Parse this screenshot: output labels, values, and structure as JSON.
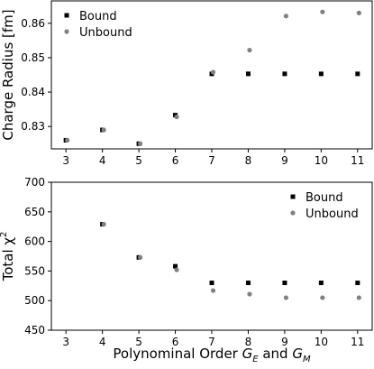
{
  "chart_data": [
    {
      "type": "scatter",
      "title": "",
      "xlabel": "",
      "ylabel": "Charge Radius [fm]",
      "x": [
        3,
        4,
        5,
        6,
        7,
        8,
        9,
        10,
        11
      ],
      "xlim": [
        2.6,
        11.4
      ],
      "ylim": [
        0.8235,
        0.8665
      ],
      "xticks": [
        "3",
        "4",
        "5",
        "6",
        "7",
        "8",
        "9",
        "10",
        "11"
      ],
      "yticks": [
        "0.83",
        "0.84",
        "0.85",
        "0.86"
      ],
      "ytick_values": [
        0.83,
        0.84,
        0.85,
        0.86
      ],
      "grid": false,
      "legend_position": "top-left",
      "series": [
        {
          "name": "Bound",
          "color": "#000000",
          "marker": "square",
          "values": [
            0.826,
            0.829,
            0.825,
            0.8333,
            0.8453,
            0.8453,
            0.8453,
            0.8453,
            0.8453
          ]
        },
        {
          "name": "Unbound",
          "color": "#808080",
          "marker": "circle",
          "values": [
            0.826,
            0.829,
            0.825,
            0.8328,
            0.8458,
            0.8522,
            0.8621,
            0.8633,
            0.863
          ]
        }
      ]
    },
    {
      "type": "scatter",
      "title": "",
      "xlabel": "Polynominal Order G_E and G_M",
      "xlabel_parts": {
        "prefix": "Polynominal Order ",
        "var1": "G",
        "sub1": "E",
        "mid": " and ",
        "var2": "G",
        "sub2": "M"
      },
      "ylabel": "Total χ",
      "ylabel_sup": "2",
      "x": [
        3,
        4,
        5,
        6,
        7,
        8,
        9,
        10,
        11
      ],
      "xlim": [
        2.6,
        11.4
      ],
      "ylim": [
        450,
        700
      ],
      "xticks": [
        "3",
        "4",
        "5",
        "6",
        "7",
        "8",
        "9",
        "10",
        "11"
      ],
      "yticks": [
        "450",
        "500",
        "550",
        "600",
        "650",
        "700"
      ],
      "ytick_values": [
        450,
        500,
        550,
        600,
        650,
        700
      ],
      "grid": false,
      "legend_position": "top-right",
      "series": [
        {
          "name": "Bound",
          "color": "#000000",
          "marker": "square",
          "values": [
            null,
            629,
            573,
            558,
            530,
            530,
            530,
            530,
            530
          ]
        },
        {
          "name": "Unbound",
          "color": "#808080",
          "marker": "circle",
          "values": [
            null,
            629,
            573,
            552,
            517,
            511,
            505,
            505,
            505
          ]
        }
      ]
    }
  ]
}
